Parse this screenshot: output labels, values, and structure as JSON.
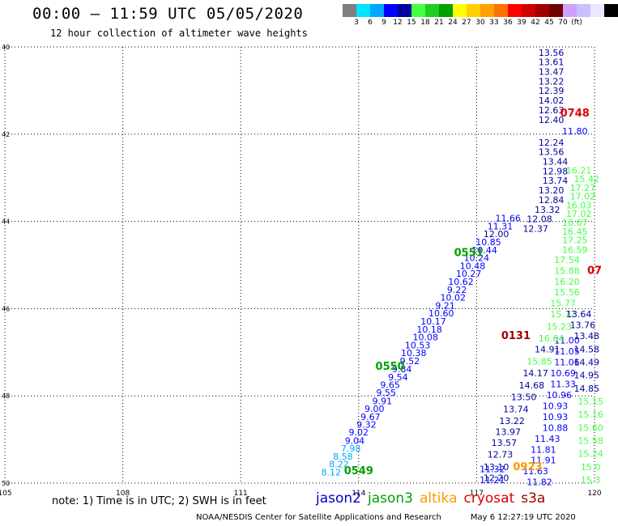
{
  "header": {
    "title": "00:00 – 11:59 UTC 05/05/2020",
    "subtitle": "12 hour collection of altimeter wave heights"
  },
  "legend": {
    "colors": [
      "#7f7f7f",
      "#00e5ff",
      "#00a8ff",
      "#0000ff",
      "#0000a0",
      "#44ff44",
      "#22cc22",
      "#00a000",
      "#ffff00",
      "#ffd000",
      "#ffa000",
      "#ff7000",
      "#ff0000",
      "#d00000",
      "#a00000",
      "#700000",
      "#d0a0ff",
      "#c8c0ff",
      "#e8e8ff",
      "#000000"
    ],
    "labels": [
      "3",
      "6",
      "9",
      "12",
      "15",
      "18",
      "21",
      "24",
      "27",
      "30",
      "33",
      "36",
      "39",
      "42",
      "45",
      "70",
      "(ft)"
    ]
  },
  "note": "note: 1) Time is in UTC; 2) SWH is in feet",
  "satellites": [
    {
      "name": "jason2",
      "color": "#0000cc"
    },
    {
      "name": "jason3",
      "color": "#00a000"
    },
    {
      "name": "altika",
      "color": "#ff9900"
    },
    {
      "name": "cryosat",
      "color": "#dd0000"
    },
    {
      "name": "s3a",
      "color": "#a00000"
    }
  ],
  "footer": {
    "org": "NOAA/NESDIS Center for Satellite Applications and Research",
    "timestamp": "May  6 12:27:19 UTC 2020"
  },
  "chart_data": {
    "type": "scatter",
    "title": "00:00 – 11:59 UTC 05/05/2020",
    "xlim": [
      105,
      120
    ],
    "ylim": [
      50,
      40
    ],
    "x_ticks": [
      "105",
      "108",
      "111",
      "114",
      "117",
      "120"
    ],
    "y_ticks": [
      "40",
      "42",
      "44",
      "46",
      "48",
      "50"
    ],
    "grid": true,
    "units": "ft",
    "time_labels": [
      {
        "text": "0748",
        "x": 119.5,
        "y": 41.6,
        "color": "#dd0000"
      },
      {
        "text": "0551",
        "x": 116.8,
        "y": 44.8,
        "color": "#00a000"
      },
      {
        "text": "0550",
        "x": 114.8,
        "y": 47.4,
        "color": "#00a000"
      },
      {
        "text": "0549",
        "x": 114.0,
        "y": 49.8,
        "color": "#00a000"
      },
      {
        "text": "0131",
        "x": 118.0,
        "y": 46.7,
        "color": "#a00000"
      },
      {
        "text": "0923",
        "x": 118.3,
        "y": 49.7,
        "color": "#ff9900"
      },
      {
        "text": "07",
        "x": 120.0,
        "y": 45.2,
        "color": "#dd0000"
      }
    ],
    "series": [
      {
        "name": "jason2 pass 1",
        "points": [
          {
            "x": 113.3,
            "y": 49.82,
            "v": "8.12"
          },
          {
            "x": 113.5,
            "y": 49.64,
            "v": "8.22"
          },
          {
            "x": 113.6,
            "y": 49.46,
            "v": "8.58"
          },
          {
            "x": 113.8,
            "y": 49.28,
            "v": "7.98"
          },
          {
            "x": 113.9,
            "y": 49.1,
            "v": "9.04"
          },
          {
            "x": 114.0,
            "y": 48.91,
            "v": "9.02"
          },
          {
            "x": 114.2,
            "y": 48.73,
            "v": "9.32"
          },
          {
            "x": 114.3,
            "y": 48.55,
            "v": "9.67"
          },
          {
            "x": 114.4,
            "y": 48.37,
            "v": "9.00"
          },
          {
            "x": 114.6,
            "y": 48.19,
            "v": "9.91"
          },
          {
            "x": 114.7,
            "y": 48.0,
            "v": "9.55"
          },
          {
            "x": 114.8,
            "y": 47.82,
            "v": "9.65"
          },
          {
            "x": 115.0,
            "y": 47.64,
            "v": "9.54"
          },
          {
            "x": 115.1,
            "y": 47.46,
            "v": "9.84"
          },
          {
            "x": 115.3,
            "y": 47.27,
            "v": "9.52"
          },
          {
            "x": 115.4,
            "y": 47.09,
            "v": "10.38"
          },
          {
            "x": 115.5,
            "y": 46.91,
            "v": "10.53"
          },
          {
            "x": 115.7,
            "y": 46.73,
            "v": "10.08"
          },
          {
            "x": 115.8,
            "y": 46.55,
            "v": "10.18"
          },
          {
            "x": 115.9,
            "y": 46.36,
            "v": "10.17"
          },
          {
            "x": 116.1,
            "y": 46.18,
            "v": "10.60"
          },
          {
            "x": 116.2,
            "y": 46.0,
            "v": "9.21"
          },
          {
            "x": 116.4,
            "y": 45.82,
            "v": "10.02"
          },
          {
            "x": 116.5,
            "y": 45.64,
            "v": "9.22"
          },
          {
            "x": 116.6,
            "y": 45.45,
            "v": "10.62"
          },
          {
            "x": 116.8,
            "y": 45.27,
            "v": "10.27"
          },
          {
            "x": 116.9,
            "y": 45.09,
            "v": "10.48"
          },
          {
            "x": 117.0,
            "y": 44.91,
            "v": "10.24"
          },
          {
            "x": 117.2,
            "y": 44.73,
            "v": "10.44"
          },
          {
            "x": 117.3,
            "y": 44.55,
            "v": "10.85"
          },
          {
            "x": 117.5,
            "y": 44.36,
            "v": "12.00"
          },
          {
            "x": 117.6,
            "y": 44.18,
            "v": "11.31"
          },
          {
            "x": 117.8,
            "y": 44.0,
            "v": "11.66"
          }
        ]
      },
      {
        "name": "jason2 pass 2",
        "points": [
          {
            "x": 119.5,
            "y": 42.0,
            "v": "11.80"
          },
          {
            "x": 119.3,
            "y": 46.8,
            "v": "11.00"
          },
          {
            "x": 119.3,
            "y": 47.05,
            "v": "11.05"
          },
          {
            "x": 119.3,
            "y": 47.3,
            "v": "11.06"
          },
          {
            "x": 119.2,
            "y": 47.55,
            "v": "10.69"
          },
          {
            "x": 119.2,
            "y": 47.8,
            "v": "11.33"
          },
          {
            "x": 119.1,
            "y": 48.05,
            "v": "10.96"
          },
          {
            "x": 119.0,
            "y": 48.3,
            "v": "10.93"
          },
          {
            "x": 119.0,
            "y": 48.55,
            "v": "10.93"
          },
          {
            "x": 119.0,
            "y": 48.8,
            "v": "10.88"
          },
          {
            "x": 118.8,
            "y": 49.05,
            "v": "11.43"
          },
          {
            "x": 118.7,
            "y": 49.3,
            "v": "11.81"
          },
          {
            "x": 118.7,
            "y": 49.55,
            "v": "11.91"
          },
          {
            "x": 118.5,
            "y": 49.8,
            "v": "11.63"
          },
          {
            "x": 118.6,
            "y": 50.05,
            "v": "11.82"
          },
          {
            "x": 117.4,
            "y": 49.75,
            "v": "11.32"
          },
          {
            "x": 117.4,
            "y": 50.0,
            "v": "11.21"
          }
        ]
      },
      {
        "name": "jason3 track",
        "points": [
          {
            "x": 118.9,
            "y": 40.2,
            "v": "13.56"
          },
          {
            "x": 118.9,
            "y": 40.42,
            "v": "13.61"
          },
          {
            "x": 118.9,
            "y": 40.64,
            "v": "13.47"
          },
          {
            "x": 118.9,
            "y": 40.86,
            "v": "13.22"
          },
          {
            "x": 118.9,
            "y": 41.08,
            "v": "12.39"
          },
          {
            "x": 118.9,
            "y": 41.3,
            "v": "14.02"
          },
          {
            "x": 118.9,
            "y": 41.52,
            "v": "12.63"
          },
          {
            "x": 118.9,
            "y": 41.74,
            "v": "12.40"
          },
          {
            "x": 118.9,
            "y": 42.26,
            "v": "12.24"
          },
          {
            "x": 118.9,
            "y": 42.48,
            "v": "13.56"
          },
          {
            "x": 119.0,
            "y": 42.7,
            "v": "13.44"
          },
          {
            "x": 119.0,
            "y": 42.92,
            "v": "12.98"
          },
          {
            "x": 119.0,
            "y": 43.14,
            "v": "13.74"
          },
          {
            "x": 118.9,
            "y": 43.36,
            "v": "13.20"
          },
          {
            "x": 118.9,
            "y": 43.58,
            "v": "12.84"
          },
          {
            "x": 118.8,
            "y": 43.8,
            "v": "13.32"
          },
          {
            "x": 118.6,
            "y": 44.02,
            "v": "12.08"
          },
          {
            "x": 118.5,
            "y": 44.24,
            "v": "12.37"
          },
          {
            "x": 119.6,
            "y": 42.9,
            "v": "16.21"
          },
          {
            "x": 119.8,
            "y": 43.1,
            "v": "15.42"
          },
          {
            "x": 119.7,
            "y": 43.3,
            "v": "17.27"
          },
          {
            "x": 119.7,
            "y": 43.5,
            "v": "17.02"
          },
          {
            "x": 119.6,
            "y": 43.7,
            "v": "16.03"
          },
          {
            "x": 119.6,
            "y": 43.9,
            "v": "17.02"
          },
          {
            "x": 119.5,
            "y": 44.1,
            "v": "16.67"
          },
          {
            "x": 119.5,
            "y": 44.3,
            "v": "16.45"
          },
          {
            "x": 119.5,
            "y": 44.5,
            "v": "17.25"
          },
          {
            "x": 119.5,
            "y": 44.72,
            "v": "16.59"
          },
          {
            "x": 119.3,
            "y": 44.95,
            "v": "17.54"
          },
          {
            "x": 119.3,
            "y": 45.2,
            "v": "15.88"
          },
          {
            "x": 119.3,
            "y": 45.45,
            "v": "16.20"
          },
          {
            "x": 119.3,
            "y": 45.7,
            "v": "15.56"
          },
          {
            "x": 119.2,
            "y": 45.95,
            "v": "15.77"
          },
          {
            "x": 119.2,
            "y": 46.2,
            "v": "15.72"
          },
          {
            "x": 119.1,
            "y": 46.48,
            "v": "15.23"
          },
          {
            "x": 118.9,
            "y": 46.75,
            "v": "16.64"
          },
          {
            "x": 118.8,
            "y": 47.0,
            "v": "14.91"
          },
          {
            "x": 118.6,
            "y": 47.28,
            "v": "15.85"
          },
          {
            "x": 118.5,
            "y": 47.55,
            "v": "14.17"
          },
          {
            "x": 118.4,
            "y": 47.83,
            "v": "14.68"
          },
          {
            "x": 118.2,
            "y": 48.1,
            "v": "13.50"
          },
          {
            "x": 118.0,
            "y": 48.38,
            "v": "13.74"
          },
          {
            "x": 117.9,
            "y": 48.65,
            "v": "13.22"
          },
          {
            "x": 117.8,
            "y": 48.9,
            "v": "13.97"
          },
          {
            "x": 117.7,
            "y": 49.15,
            "v": "13.57"
          },
          {
            "x": 117.6,
            "y": 49.42,
            "v": "12.73"
          },
          {
            "x": 117.5,
            "y": 49.7,
            "v": "13.10"
          },
          {
            "x": 117.5,
            "y": 49.95,
            "v": "12.20"
          },
          {
            "x": 119.6,
            "y": 46.2,
            "v": "13.64"
          },
          {
            "x": 119.7,
            "y": 46.45,
            "v": "13.76"
          },
          {
            "x": 119.8,
            "y": 46.7,
            "v": "13.48"
          },
          {
            "x": 119.8,
            "y": 47.0,
            "v": "14.58"
          },
          {
            "x": 119.8,
            "y": 47.3,
            "v": "14.49"
          },
          {
            "x": 119.8,
            "y": 47.6,
            "v": "14.95"
          },
          {
            "x": 119.8,
            "y": 47.9,
            "v": "14.85"
          },
          {
            "x": 119.9,
            "y": 48.2,
            "v": "15.15"
          },
          {
            "x": 119.9,
            "y": 48.5,
            "v": "15.16"
          },
          {
            "x": 119.9,
            "y": 48.8,
            "v": "15.60"
          },
          {
            "x": 119.9,
            "y": 49.1,
            "v": "15.58"
          },
          {
            "x": 119.9,
            "y": 49.4,
            "v": "15.24"
          },
          {
            "x": 119.9,
            "y": 49.7,
            "v": "15.0"
          },
          {
            "x": 119.9,
            "y": 50.0,
            "v": "15.3"
          }
        ]
      }
    ]
  }
}
